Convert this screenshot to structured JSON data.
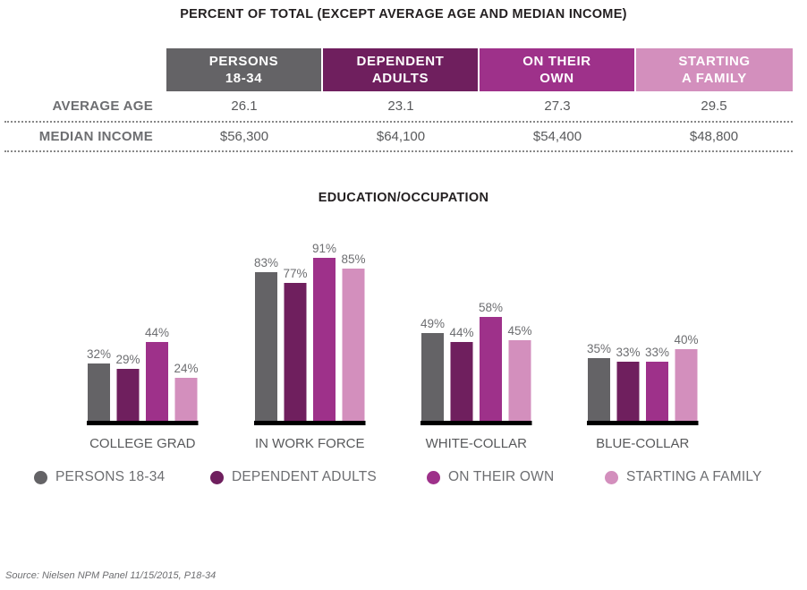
{
  "title": "PERCENT OF TOTAL (EXCEPT AVERAGE AGE AND MEDIAN INCOME)",
  "colors": {
    "persons": "#646366",
    "dependent": "#6f1f5e",
    "own": "#9e318a",
    "family": "#d38fbd"
  },
  "table": {
    "headers": [
      {
        "label": "PERSONS\n18-34"
      },
      {
        "label": "DEPENDENT\nADULTS"
      },
      {
        "label": "ON THEIR\nOWN"
      },
      {
        "label": "STARTING\nA FAMILY"
      }
    ],
    "rows": [
      {
        "label": "AVERAGE AGE",
        "values": [
          "26.1",
          "23.1",
          "27.3",
          "29.5"
        ]
      },
      {
        "label": "MEDIAN INCOME",
        "values": [
          "$56,300",
          "$64,100",
          "$54,400",
          "$48,800"
        ]
      }
    ]
  },
  "chart_data": {
    "type": "bar",
    "title": "EDUCATION/OCCUPATION",
    "categories": [
      "COLLEGE GRAD",
      "IN WORK FORCE",
      "WHITE-COLLAR",
      "BLUE-COLLAR"
    ],
    "series": [
      {
        "name": "PERSONS 18-34",
        "values": [
          32,
          83,
          49,
          35
        ],
        "labels": [
          "32%",
          "83%",
          "49%",
          "35%"
        ]
      },
      {
        "name": "DEPENDENT ADULTS",
        "values": [
          29,
          77,
          44,
          33
        ],
        "labels": [
          "29%",
          "77%",
          "44%",
          "33%"
        ]
      },
      {
        "name": "ON THEIR OWN",
        "values": [
          44,
          91,
          58,
          33
        ],
        "labels": [
          "44%",
          "91%",
          "58%",
          "33%"
        ]
      },
      {
        "name": "STARTING A FAMILY",
        "values": [
          24,
          85,
          45,
          40
        ],
        "labels": [
          "24%",
          "85%",
          "45%",
          "40%"
        ]
      }
    ],
    "ylim": [
      0,
      100
    ],
    "unit": "%",
    "legend": "bottom",
    "grid": false
  },
  "source": "Source: Nielsen NPM Panel 11/15/2015, P18-34"
}
